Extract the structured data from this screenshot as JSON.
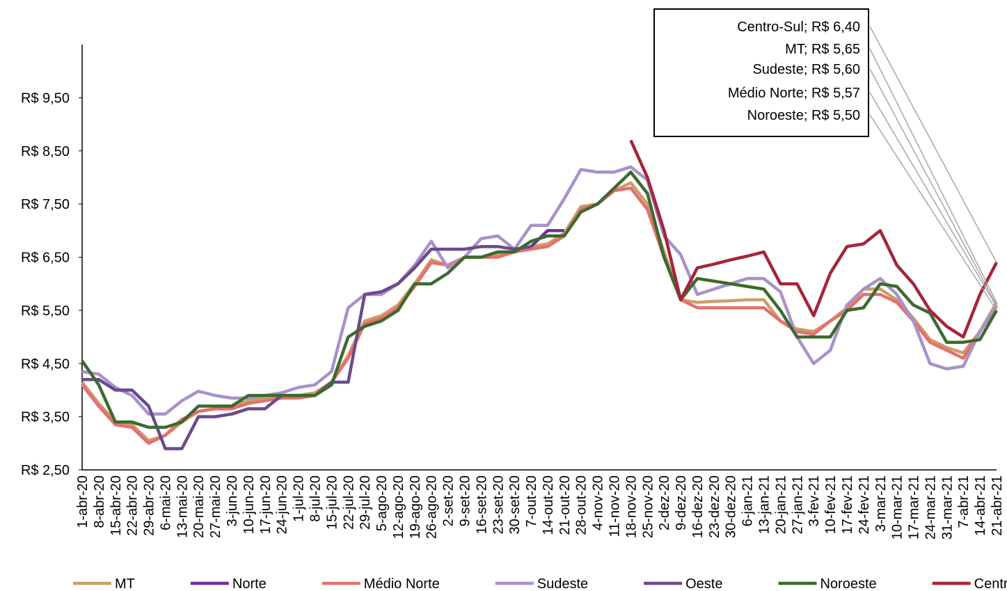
{
  "chart_data": {
    "type": "line",
    "categories": [
      "1-abr-20",
      "8-abr-20",
      "15-abr-20",
      "22-abr-20",
      "29-abr-20",
      "6-mai-20",
      "13-mai-20",
      "20-mai-20",
      "27-mai-20",
      "3-jun-20",
      "10-jun-20",
      "17-jun-20",
      "24-jun-20",
      "1-jul-20",
      "8-jul-20",
      "15-jul-20",
      "22-jul-20",
      "29-jul-20",
      "5-ago-20",
      "12-ago-20",
      "19-ago-20",
      "26-ago-20",
      "2-set-20",
      "9-set-20",
      "16-set-20",
      "23-set-20",
      "30-set-20",
      "7-out-20",
      "14-out-20",
      "21-out-20",
      "28-out-20",
      "4-nov-20",
      "11-nov-20",
      "18-nov-20",
      "25-nov-20",
      "2-dez-20",
      "9-dez-20",
      "16-dez-20",
      "23-dez-20",
      "30-dez-20",
      "6-jan-21",
      "13-jan-21",
      "20-jan-21",
      "27-jan-21",
      "3-fev-21",
      "10-fev-21",
      "17-fev-21",
      "24-fev-21",
      "3-mar-21",
      "10-mar-21",
      "17-mar-21",
      "24-mar-21",
      "31-mar-21",
      "7-abr-21",
      "14-abr-21",
      "21-abr-21"
    ],
    "series": [
      {
        "name": "MT",
        "color": "#c9a06a",
        "values": [
          4.15,
          3.75,
          3.4,
          3.35,
          3.05,
          3.15,
          3.4,
          3.6,
          3.65,
          3.7,
          3.8,
          3.85,
          3.9,
          3.9,
          3.95,
          4.15,
          4.65,
          5.3,
          5.4,
          5.6,
          6.0,
          6.45,
          6.35,
          6.5,
          6.5,
          6.55,
          6.6,
          6.7,
          6.75,
          6.95,
          7.45,
          7.5,
          7.75,
          7.9,
          7.5,
          6.6,
          5.7,
          5.65,
          5.67,
          5.68,
          5.7,
          5.7,
          5.3,
          5.15,
          5.1,
          5.3,
          5.55,
          5.9,
          5.9,
          5.7,
          5.35,
          4.95,
          4.8,
          4.7,
          5.1,
          5.65
        ],
        "value_labels": [
          null,
          null,
          null,
          null,
          null,
          null,
          null,
          null,
          null,
          null,
          null,
          null,
          null,
          null,
          null,
          null,
          null,
          null,
          null,
          null,
          null,
          null,
          null,
          null,
          null,
          null,
          null,
          null,
          null,
          null,
          null,
          null,
          null,
          null,
          null,
          null,
          null,
          null,
          null,
          null,
          null,
          null,
          null,
          null,
          null,
          null,
          null,
          null,
          null,
          null,
          null,
          null,
          null,
          null,
          null,
          "MT; R$ 5,65"
        ]
      },
      {
        "name": "Norte",
        "color": "#7030a0",
        "values": [
          null,
          null,
          null,
          null,
          null,
          null,
          null,
          null,
          null,
          null,
          null,
          null,
          null,
          null,
          null,
          null,
          null,
          null,
          null,
          null,
          null,
          null,
          null,
          null,
          null,
          null,
          null,
          6.7,
          7.0,
          7.0,
          null,
          null,
          null,
          null,
          null,
          null,
          null,
          null,
          null,
          null,
          null,
          null,
          null,
          null,
          null,
          null,
          null,
          null,
          null,
          null,
          null,
          null,
          null,
          null,
          null,
          null
        ]
      },
      {
        "name": "Médio Norte",
        "color": "#e5706f",
        "values": [
          4.1,
          3.7,
          3.35,
          3.3,
          3.0,
          3.15,
          3.45,
          3.6,
          3.65,
          3.65,
          3.75,
          3.8,
          3.85,
          3.85,
          3.9,
          4.15,
          4.6,
          5.25,
          5.35,
          5.55,
          5.95,
          6.4,
          6.35,
          6.5,
          6.5,
          6.5,
          6.6,
          6.65,
          6.7,
          6.9,
          7.4,
          7.5,
          7.75,
          7.8,
          7.4,
          6.5,
          5.7,
          5.55,
          5.55,
          5.55,
          5.55,
          5.55,
          5.3,
          5.1,
          5.05,
          5.3,
          5.5,
          5.8,
          5.8,
          5.65,
          5.3,
          4.9,
          4.75,
          4.6,
          5.1,
          5.57
        ],
        "value_labels": [
          null,
          null,
          null,
          null,
          null,
          null,
          null,
          null,
          null,
          null,
          null,
          null,
          null,
          null,
          null,
          null,
          null,
          null,
          null,
          null,
          null,
          null,
          null,
          null,
          null,
          null,
          null,
          null,
          null,
          null,
          null,
          null,
          null,
          null,
          null,
          null,
          null,
          null,
          null,
          null,
          null,
          null,
          null,
          null,
          null,
          null,
          null,
          null,
          null,
          null,
          null,
          null,
          null,
          null,
          null,
          "Médio Norte; R$ 5,57"
        ]
      },
      {
        "name": "Sudeste",
        "color": "#a892c9",
        "values": [
          4.35,
          4.3,
          4.05,
          3.9,
          3.55,
          3.55,
          3.8,
          3.98,
          3.9,
          3.85,
          3.85,
          3.9,
          3.95,
          4.05,
          4.1,
          4.35,
          5.55,
          5.8,
          5.8,
          6.0,
          6.35,
          6.8,
          6.3,
          6.5,
          6.85,
          6.9,
          6.65,
          7.1,
          7.1,
          7.6,
          8.15,
          8.1,
          8.1,
          8.2,
          7.95,
          6.9,
          6.55,
          5.8,
          5.9,
          6.0,
          6.1,
          6.1,
          5.85,
          5.0,
          4.5,
          4.75,
          5.6,
          5.9,
          6.1,
          5.8,
          5.3,
          4.5,
          4.4,
          4.45,
          5.1,
          5.6
        ],
        "value_labels": [
          null,
          null,
          null,
          null,
          null,
          null,
          null,
          null,
          null,
          null,
          null,
          null,
          null,
          null,
          null,
          null,
          null,
          null,
          null,
          null,
          null,
          null,
          null,
          null,
          null,
          null,
          null,
          null,
          null,
          null,
          null,
          null,
          null,
          null,
          null,
          null,
          null,
          null,
          null,
          null,
          null,
          null,
          null,
          null,
          null,
          null,
          null,
          null,
          null,
          null,
          null,
          null,
          null,
          null,
          null,
          "Sudeste; R$ 5,60"
        ]
      },
      {
        "name": "Oeste",
        "color": "#6b4a8c",
        "values": [
          4.2,
          4.2,
          4.0,
          4.0,
          3.7,
          2.9,
          2.9,
          3.5,
          3.5,
          3.55,
          3.65,
          3.65,
          3.9,
          3.9,
          3.9,
          4.15,
          4.15,
          5.8,
          5.85,
          6.0,
          6.3,
          6.65,
          6.65,
          6.65,
          6.7,
          6.7,
          6.65,
          6.7,
          null,
          null,
          null,
          null,
          null,
          null,
          null,
          null,
          null,
          null,
          null,
          null,
          null,
          null,
          null,
          null,
          null,
          null,
          null,
          null,
          null,
          null,
          null,
          null,
          null,
          null,
          null,
          null
        ]
      },
      {
        "name": "Noroeste",
        "color": "#3c6a2e",
        "values": [
          4.55,
          4.1,
          3.4,
          3.4,
          3.3,
          3.3,
          3.4,
          3.7,
          3.7,
          3.7,
          3.9,
          3.9,
          3.9,
          3.9,
          3.9,
          4.1,
          5.0,
          5.2,
          5.3,
          5.5,
          6.0,
          6.0,
          6.2,
          6.5,
          6.5,
          6.6,
          6.6,
          6.8,
          6.9,
          6.9,
          7.35,
          7.5,
          7.8,
          8.1,
          7.7,
          6.5,
          5.7,
          6.1,
          6.05,
          6.0,
          5.95,
          5.9,
          5.5,
          5.0,
          5.0,
          5.0,
          5.5,
          5.55,
          6.0,
          5.95,
          5.6,
          5.45,
          4.9,
          4.9,
          4.95,
          5.5
        ],
        "value_labels": [
          null,
          null,
          null,
          null,
          null,
          null,
          null,
          null,
          null,
          null,
          null,
          null,
          null,
          null,
          null,
          null,
          null,
          null,
          null,
          null,
          null,
          null,
          null,
          null,
          null,
          null,
          null,
          null,
          null,
          null,
          null,
          null,
          null,
          null,
          null,
          null,
          null,
          null,
          null,
          null,
          null,
          null,
          null,
          null,
          null,
          null,
          null,
          null,
          null,
          null,
          null,
          null,
          null,
          null,
          null,
          "Noroeste; R$ 5,50"
        ]
      },
      {
        "name": "Centro-Sul",
        "color": "#a5243a",
        "values": [
          null,
          null,
          null,
          null,
          null,
          null,
          null,
          null,
          null,
          null,
          null,
          null,
          null,
          null,
          null,
          null,
          null,
          null,
          null,
          null,
          null,
          null,
          null,
          null,
          null,
          null,
          null,
          null,
          null,
          null,
          null,
          null,
          null,
          8.7,
          8.0,
          7.0,
          5.7,
          6.3,
          6.37,
          6.45,
          6.52,
          6.6,
          6.0,
          6.0,
          5.4,
          6.2,
          6.7,
          6.75,
          7.0,
          6.35,
          6.0,
          5.5,
          5.2,
          5.0,
          5.8,
          6.4
        ],
        "value_labels": [
          null,
          null,
          null,
          null,
          null,
          null,
          null,
          null,
          null,
          null,
          null,
          null,
          null,
          null,
          null,
          null,
          null,
          null,
          null,
          null,
          null,
          null,
          null,
          null,
          null,
          null,
          null,
          null,
          null,
          null,
          null,
          null,
          null,
          null,
          null,
          null,
          null,
          null,
          null,
          null,
          null,
          null,
          null,
          null,
          null,
          null,
          null,
          null,
          null,
          null,
          null,
          null,
          null,
          null,
          null,
          "Centro-Sul; R$ 6,40"
        ]
      }
    ],
    "ylim": [
      2.5,
      10.5
    ],
    "yticks": [
      {
        "value": 2.5,
        "label": "R$ 2,50"
      },
      {
        "value": 3.5,
        "label": "R$ 3,50"
      },
      {
        "value": 4.5,
        "label": "R$ 4,50"
      },
      {
        "value": 5.5,
        "label": "R$ 5,50"
      },
      {
        "value": 6.5,
        "label": "R$ 6,50"
      },
      {
        "value": 7.5,
        "label": "R$ 7,50"
      },
      {
        "value": 8.5,
        "label": "R$ 8,50"
      },
      {
        "value": 9.5,
        "label": "R$ 9,50"
      }
    ],
    "grid": false,
    "legend": "bottom"
  }
}
